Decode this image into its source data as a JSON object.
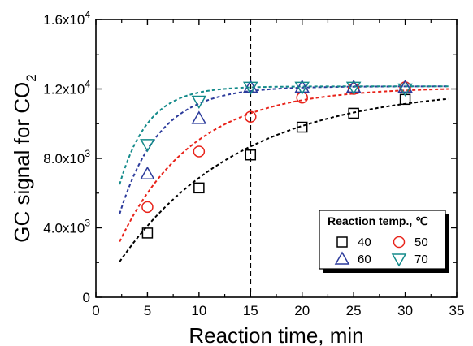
{
  "chart_data": {
    "type": "scatter",
    "xlabel": "Reaction time, min",
    "ylabel_main": "GC signal for CO",
    "ylabel_sub": "2",
    "xlim": [
      0,
      35
    ],
    "ylim": [
      0,
      16000
    ],
    "x_ticks": [
      0,
      5,
      10,
      15,
      20,
      25,
      30,
      35
    ],
    "y_ticks": [
      {
        "value": 0,
        "label": "0",
        "exp": ""
      },
      {
        "value": 4000,
        "label": "4.0x10",
        "exp": "3"
      },
      {
        "value": 8000,
        "label": "8.0x10",
        "exp": "3"
      },
      {
        "value": 12000,
        "label": "1.2x10",
        "exp": "4"
      },
      {
        "value": 16000,
        "label": "1.6x10",
        "exp": "4"
      }
    ],
    "grid": false,
    "vertical_line": {
      "x": 15,
      "style": "dashed",
      "color": "#000000"
    },
    "legend": {
      "title": "Reaction temp., ℃",
      "placement": "bottom-right",
      "entries": [
        {
          "label": "40",
          "marker": "square",
          "color": "#000000"
        },
        {
          "label": "50",
          "marker": "circle",
          "color": "#e8231a"
        },
        {
          "label": "60",
          "marker": "triangle-up",
          "color": "#2b3a9b"
        },
        {
          "label": "70",
          "marker": "triangle-down",
          "color": "#138a8a"
        }
      ]
    },
    "series": [
      {
        "name": "40",
        "marker": "square",
        "color": "#000000",
        "x": [
          5,
          10,
          15,
          20,
          25,
          30
        ],
        "y": [
          3700,
          6300,
          8200,
          9800,
          10600,
          11400
        ],
        "fit": {
          "y0": 2050,
          "ymax": 12100,
          "k": 0.085,
          "x_start": 2.3,
          "x_end": 34.2
        }
      },
      {
        "name": "50",
        "marker": "circle",
        "color": "#e8231a",
        "x": [
          5,
          10,
          15,
          20,
          25,
          30
        ],
        "y": [
          5200,
          8400,
          10400,
          11500,
          12000,
          12100
        ],
        "fit": {
          "y0": 3200,
          "ymax": 12100,
          "k": 0.14,
          "x_start": 2.3,
          "x_end": 34.2
        }
      },
      {
        "name": "60",
        "marker": "triangle-up",
        "color": "#2b3a9b",
        "x": [
          5,
          10,
          15,
          20,
          25,
          30
        ],
        "y": [
          7100,
          10300,
          12100,
          12100,
          12100,
          12100
        ],
        "fit": {
          "y0": 4800,
          "ymax": 12150,
          "k": 0.26,
          "x_start": 2.3,
          "x_end": 34.2
        }
      },
      {
        "name": "70",
        "marker": "triangle-down",
        "color": "#138a8a",
        "x": [
          5,
          10,
          15,
          20,
          25,
          30
        ],
        "y": [
          8800,
          11300,
          12100,
          12100,
          12100,
          12000
        ],
        "fit": {
          "y0": 6500,
          "ymax": 12150,
          "k": 0.36,
          "x_start": 2.3,
          "x_end": 34.2
        }
      }
    ]
  }
}
